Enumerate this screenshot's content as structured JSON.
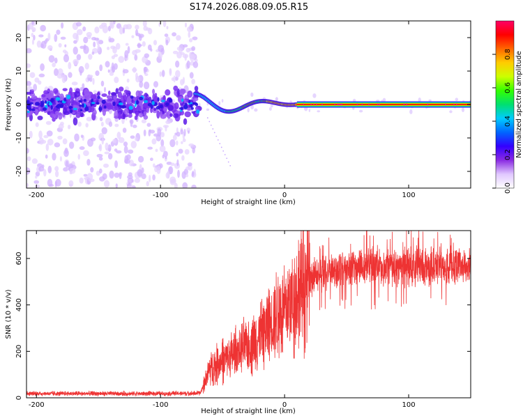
{
  "title": "S174.2026.088.09.05.R15",
  "chart_data": [
    {
      "type": "heatmap",
      "xlabel": "Height of straight line (km)",
      "ylabel": "Frequency (Hz)",
      "xlim": [
        -208,
        150
      ],
      "ylim": [
        -25,
        25
      ],
      "xticks": [
        -200,
        -100,
        0,
        100
      ],
      "yticks": [
        -20,
        -10,
        0,
        10,
        20
      ],
      "colorbar": {
        "label": "Normalized spectral amplitude",
        "range": [
          0,
          1
        ],
        "ticks": [
          0.0,
          0.2,
          0.4,
          0.6,
          0.8
        ],
        "colors": [
          "#ffffff",
          "#e0c8ff",
          "#8a2be2",
          "#3300ff",
          "#0066ff",
          "#00ccff",
          "#00e070",
          "#33ff00",
          "#ccff00",
          "#ffcc00",
          "#ff6600",
          "#ff0000",
          "#ff0066"
        ]
      },
      "features": {
        "noise_region_x": [
          -208,
          -75
        ],
        "transition_x": [
          -72,
          10
        ],
        "steady_tone_x": [
          10,
          150
        ],
        "steady_tone_freq": 0
      }
    },
    {
      "type": "line",
      "xlabel": "Height of straight line (km)",
      "ylabel": "SNR (10 * v/v)",
      "xlim": [
        -208,
        150
      ],
      "ylim": [
        0,
        720
      ],
      "xticks": [
        -200,
        -100,
        0,
        100
      ],
      "yticks": [
        0,
        200,
        400,
        600
      ],
      "color": "#ee3333",
      "envelope": [
        {
          "x": -208,
          "y": 18
        },
        {
          "x": -100,
          "y": 18
        },
        {
          "x": -68,
          "y": 20
        },
        {
          "x": -60,
          "y": 130
        },
        {
          "x": -40,
          "y": 190
        },
        {
          "x": -20,
          "y": 260
        },
        {
          "x": -10,
          "y": 340
        },
        {
          "x": 0,
          "y": 380
        },
        {
          "x": 10,
          "y": 450
        },
        {
          "x": 20,
          "y": 510
        },
        {
          "x": 30,
          "y": 540
        },
        {
          "x": 50,
          "y": 560
        },
        {
          "x": 100,
          "y": 560
        },
        {
          "x": 150,
          "y": 570
        }
      ]
    }
  ]
}
